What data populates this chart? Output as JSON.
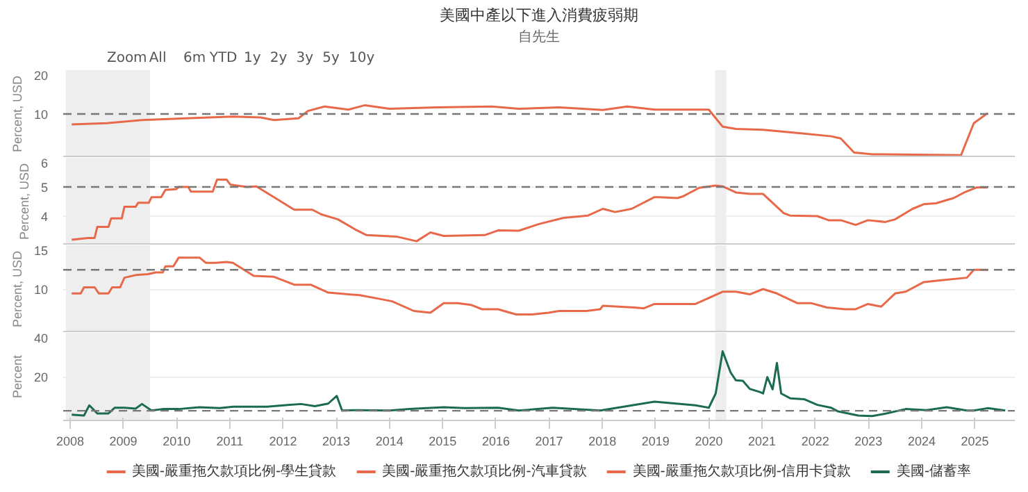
{
  "chart_data": [
    {
      "type": "line",
      "title": "美國中產以下進入消費疲弱期",
      "subtitle": "自先生",
      "annotations": [
        "Zoom",
        "All",
        "6m",
        "YTD",
        "1y",
        "2y",
        "3y",
        "5y",
        "10y"
      ],
      "ylabel": "Percent, USD",
      "xlim": [
        2007.87,
        2025.75
      ],
      "ylim": [
        0,
        20
      ],
      "yticks": [
        10,
        20
      ],
      "legend": "bottom",
      "tick_labels": "y",
      "series": [
        {
          "name": "美國-嚴重拖欠款項比例-學生貸款",
          "color": "#e8694a",
          "x": [
            2008.03,
            2008.69,
            2009.35,
            2010.17,
            2011.06,
            2011.58,
            2011.83,
            2012.29,
            2012.47,
            2012.78,
            2013.23,
            2013.54,
            2014.0,
            2014.89,
            2015.92,
            2016.43,
            2017.19,
            2018.01,
            2018.47,
            2018.98,
            2020.0,
            2020.26,
            2020.51,
            2021.02,
            2021.79,
            2022.3,
            2022.48,
            2022.73,
            2023.07,
            2024.74,
            2024.98,
            2025.24
          ],
          "values": [
            7.6,
            7.9,
            8.6,
            9.0,
            9.4,
            9.2,
            8.6,
            9.0,
            10.7,
            11.7,
            11.0,
            12.0,
            11.2,
            11.5,
            11.7,
            11.2,
            11.5,
            10.9,
            11.7,
            11.0,
            11.0,
            7.1,
            6.6,
            6.4,
            5.5,
            4.9,
            4.4,
            1.2,
            0.8,
            0.6,
            7.9,
            10.2
          ]
        }
      ],
      "ref_lines": [
        {
          "axis": "y",
          "value": 10,
          "color": "#777777",
          "line_style": "dashed"
        }
      ],
      "bands": [
        {
          "axis": "x",
          "from": 2007.92,
          "to": 2009.5,
          "color": "#eeeeee"
        },
        {
          "axis": "x",
          "from": 2020.12,
          "to": 2020.33,
          "color": "#eeeeee"
        }
      ]
    },
    {
      "type": "line",
      "ylabel": "Percent, USD",
      "xlim": [
        2007.87,
        2025.75
      ],
      "ylim": [
        3,
        6
      ],
      "yticks": [
        4,
        5,
        6
      ],
      "grid": "y",
      "legend": "bottom",
      "tick_labels": "y",
      "series": [
        {
          "name": "美國-嚴重拖欠款項比例-汽車貸款",
          "color": "#e8694a",
          "x": [
            2008.03,
            2008.33,
            2008.46,
            2008.51,
            2008.72,
            2008.77,
            2008.97,
            2009.02,
            2009.23,
            2009.28,
            2009.48,
            2009.53,
            2009.71,
            2009.79,
            2009.99,
            2010.04,
            2010.22,
            2010.27,
            2010.68,
            2010.76,
            2010.94,
            2011.01,
            2011.32,
            2011.5,
            2011.83,
            2012.21,
            2012.55,
            2012.72,
            2013.03,
            2013.36,
            2013.57,
            2014.13,
            2014.51,
            2014.77,
            2015.02,
            2015.79,
            2016.04,
            2016.43,
            2016.81,
            2017.27,
            2017.73,
            2018.01,
            2018.24,
            2018.55,
            2018.98,
            2019.06,
            2019.41,
            2019.52,
            2019.82,
            2020.13,
            2020.26,
            2020.51,
            2020.77,
            2021.02,
            2021.41,
            2021.53,
            2022.04,
            2022.25,
            2022.48,
            2022.76,
            2022.99,
            2023.32,
            2023.5,
            2023.83,
            2024.04,
            2024.27,
            2024.6,
            2024.8,
            2025.03,
            2025.24
          ],
          "values": [
            3.19,
            3.25,
            3.25,
            3.63,
            3.63,
            3.92,
            3.92,
            4.32,
            4.32,
            4.46,
            4.46,
            4.65,
            4.65,
            4.9,
            4.92,
            5.0,
            5.0,
            4.84,
            4.84,
            5.25,
            5.25,
            5.08,
            5.0,
            5.02,
            4.65,
            4.22,
            4.22,
            4.06,
            3.89,
            3.54,
            3.35,
            3.3,
            3.14,
            3.44,
            3.32,
            3.35,
            3.51,
            3.5,
            3.73,
            3.94,
            4.02,
            4.25,
            4.14,
            4.25,
            4.65,
            4.65,
            4.62,
            4.68,
            4.97,
            5.05,
            5.02,
            4.81,
            4.76,
            4.76,
            4.1,
            4.02,
            4.0,
            3.86,
            3.86,
            3.7,
            3.86,
            3.8,
            3.89,
            4.25,
            4.41,
            4.44,
            4.62,
            4.81,
            4.98,
            4.98
          ]
        }
      ],
      "ref_lines": [
        {
          "axis": "y",
          "value": 5,
          "color": "#777777",
          "line_style": "dashed"
        }
      ],
      "bands": [
        {
          "axis": "x",
          "from": 2007.92,
          "to": 2009.5,
          "color": "#eeeeee"
        },
        {
          "axis": "x",
          "from": 2020.12,
          "to": 2020.33,
          "color": "#eeeeee"
        }
      ]
    },
    {
      "type": "line",
      "ylabel": "Percent, USD",
      "xlim": [
        2007.87,
        2025.75
      ],
      "ylim": [
        5,
        15
      ],
      "yticks": [
        10,
        15
      ],
      "grid": "y",
      "legend": "bottom",
      "tick_labels": "y",
      "series": [
        {
          "name": "美國-嚴重拖欠款項比例-信用卡貸款",
          "color": "#e8694a",
          "x": [
            2008.03,
            2008.2,
            2008.26,
            2008.46,
            2008.54,
            2008.72,
            2008.79,
            2008.94,
            2009.02,
            2009.23,
            2009.46,
            2009.61,
            2009.74,
            2009.79,
            2009.94,
            2010.04,
            2010.43,
            2010.55,
            2010.73,
            2010.94,
            2011.06,
            2011.45,
            2011.83,
            2012.21,
            2012.52,
            2012.85,
            2013.23,
            2013.44,
            2013.8,
            2014.05,
            2014.46,
            2014.77,
            2015.02,
            2015.28,
            2015.53,
            2015.74,
            2016.04,
            2016.38,
            2016.68,
            2016.99,
            2017.19,
            2017.7,
            2017.96,
            2018.01,
            2018.6,
            2018.78,
            2018.98,
            2019.75,
            2020.26,
            2020.51,
            2020.77,
            2021.02,
            2021.28,
            2021.66,
            2021.92,
            2022.22,
            2022.56,
            2022.76,
            2022.99,
            2023.24,
            2023.5,
            2023.7,
            2024.04,
            2024.34,
            2024.85,
            2024.98,
            2025.16,
            2025.24
          ],
          "values": [
            9.5,
            9.5,
            10.2,
            10.2,
            9.5,
            9.5,
            10.2,
            10.2,
            11.3,
            11.6,
            11.7,
            11.9,
            11.9,
            12.6,
            12.6,
            13.6,
            13.6,
            13.0,
            13.0,
            13.1,
            13.0,
            11.5,
            11.4,
            10.5,
            10.5,
            9.6,
            9.4,
            9.3,
            8.9,
            8.6,
            7.5,
            7.3,
            8.4,
            8.4,
            8.2,
            7.7,
            7.7,
            7.1,
            7.1,
            7.3,
            7.5,
            7.5,
            7.7,
            8.1,
            7.9,
            7.8,
            8.3,
            8.3,
            9.7,
            9.7,
            9.4,
            10.0,
            9.5,
            8.4,
            8.4,
            7.9,
            7.7,
            7.7,
            8.3,
            8.0,
            9.5,
            9.7,
            10.8,
            11.0,
            11.3,
            12.2,
            12.2,
            12.2
          ]
        }
      ],
      "ref_lines": [
        {
          "axis": "y",
          "value": 12.2,
          "color": "#777777",
          "line_style": "dashed"
        }
      ],
      "bands": [
        {
          "axis": "x",
          "from": 2007.92,
          "to": 2009.5,
          "color": "#eeeeee"
        },
        {
          "axis": "x",
          "from": 2020.12,
          "to": 2020.33,
          "color": "#eeeeee"
        }
      ]
    },
    {
      "type": "line",
      "ylabel": "Percent",
      "xlim": [
        2007.87,
        2025.75
      ],
      "ylim": [
        0,
        40
      ],
      "yticks": [
        20,
        40
      ],
      "xticks": [
        2008,
        2009,
        2010,
        2011,
        2012,
        2013,
        2014,
        2015,
        2016,
        2017,
        2018,
        2019,
        2020,
        2021,
        2022,
        2023,
        2024,
        2025
      ],
      "grid": "y",
      "legend": "bottom",
      "series": [
        {
          "name": "美國-儲蓄率",
          "color": "#1a6b4f",
          "x": [
            2008.03,
            2008.26,
            2008.36,
            2008.51,
            2008.72,
            2008.84,
            2009.02,
            2009.23,
            2009.35,
            2009.53,
            2009.74,
            2010.04,
            2010.43,
            2010.81,
            2011.06,
            2011.7,
            2012.09,
            2012.34,
            2012.6,
            2012.85,
            2013.01,
            2013.11,
            2013.36,
            2014.0,
            2014.38,
            2015.02,
            2015.41,
            2016.04,
            2016.43,
            2017.07,
            2017.96,
            2018.98,
            2019.75,
            2020.0,
            2020.13,
            2020.26,
            2020.41,
            2020.51,
            2020.64,
            2020.77,
            2020.97,
            2021.02,
            2021.1,
            2021.2,
            2021.28,
            2021.36,
            2021.53,
            2021.79,
            2022.04,
            2022.3,
            2022.43,
            2022.81,
            2023.07,
            2023.32,
            2023.7,
            2024.09,
            2024.47,
            2024.85,
            2024.98,
            2025.24,
            2025.57
          ],
          "values": [
            2.6,
            2.2,
            6.9,
            3.2,
            3.2,
            5.8,
            5.8,
            5.4,
            7.5,
            4.5,
            5.2,
            5.2,
            6.0,
            5.6,
            6.3,
            6.3,
            7.1,
            7.5,
            6.5,
            7.7,
            11.2,
            4.5,
            4.7,
            4.5,
            5.2,
            6.0,
            5.6,
            5.8,
            4.5,
            5.8,
            4.5,
            8.6,
            6.9,
            5.8,
            12.3,
            31.6,
            21.9,
            18.3,
            18.1,
            14.4,
            12.9,
            12.3,
            19.8,
            14.2,
            26.3,
            12.3,
            10.1,
            9.7,
            7.1,
            5.8,
            4.1,
            2.2,
            2.0,
            3.1,
            5.2,
            4.7,
            6.0,
            4.5,
            4.5,
            5.6,
            4.5
          ]
        }
      ],
      "ref_lines": [
        {
          "axis": "y",
          "value": 4.4,
          "color": "#777777",
          "line_style": "dashed"
        }
      ],
      "bands": [
        {
          "axis": "x",
          "from": 2007.92,
          "to": 2009.5,
          "color": "#eeeeee"
        },
        {
          "axis": "x",
          "from": 2020.12,
          "to": 2020.33,
          "color": "#eeeeee"
        }
      ]
    }
  ]
}
